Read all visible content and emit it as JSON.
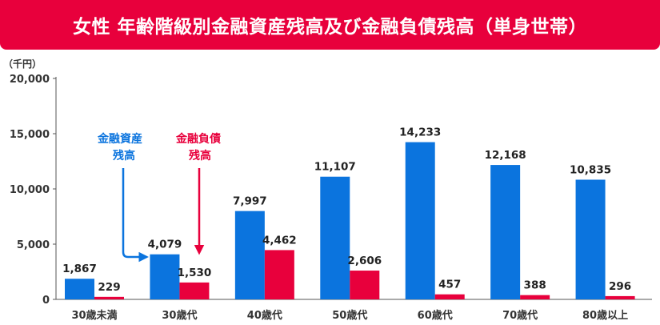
{
  "title": "女性 年齢階級別金融資産残高及び金融負債残高（単身世帯）",
  "chart_data": {
    "type": "bar",
    "unit_label": "（千円）",
    "categories": [
      "30歳未満",
      "30歳代",
      "40歳代",
      "50歳代",
      "60歳代",
      "70歳代",
      "80歳以上"
    ],
    "series": [
      {
        "name": "金融資産残高",
        "color": "#0b74de",
        "values": [
          1867,
          4079,
          7997,
          11107,
          14233,
          12168,
          10835
        ]
      },
      {
        "name": "金融負債残高",
        "color": "#e8003c",
        "values": [
          229,
          1530,
          4462,
          2606,
          457,
          388,
          296
        ]
      }
    ],
    "ylim": [
      0,
      20000
    ],
    "yticks": [
      "0",
      "5,000",
      "10,000",
      "15,000",
      "20,000"
    ],
    "ytick_values": [
      0,
      5000,
      10000,
      15000,
      20000
    ],
    "data_labels": [
      [
        "1,867",
        "4,079",
        "7,997",
        "11,107",
        "14,233",
        "12,168",
        "10,835"
      ],
      [
        "229",
        "1,530",
        "4,462",
        "2,606",
        "457",
        "388",
        "296"
      ]
    ],
    "annotations": {
      "asset": {
        "lines": [
          "金融資産",
          "残高"
        ],
        "color": "#0b74de"
      },
      "debt": {
        "lines": [
          "金融負債",
          "残高"
        ],
        "color": "#e8003c"
      }
    }
  }
}
